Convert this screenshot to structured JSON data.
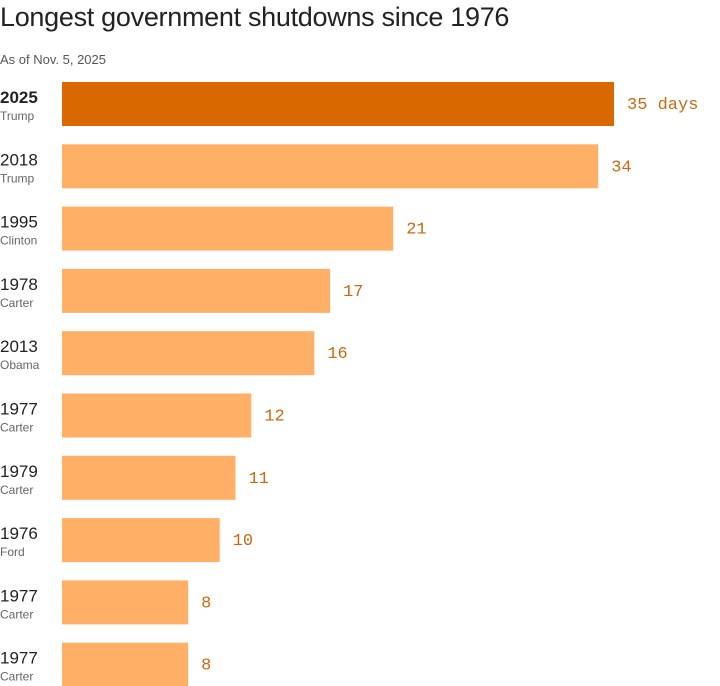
{
  "chart_data": {
    "type": "bar",
    "orientation": "horizontal",
    "title": "Longest government shutdowns since 1976",
    "subtitle": "As of Nov. 5, 2025",
    "unit_label": "days",
    "categories": [
      {
        "year": "2025",
        "president": "Trump"
      },
      {
        "year": "2018",
        "president": "Trump"
      },
      {
        "year": "1995",
        "president": "Clinton"
      },
      {
        "year": "1978",
        "president": "Carter"
      },
      {
        "year": "2013",
        "president": "Obama"
      },
      {
        "year": "1977",
        "president": "Carter"
      },
      {
        "year": "1979",
        "president": "Carter"
      },
      {
        "year": "1976",
        "president": "Ford"
      },
      {
        "year": "1977",
        "president": "Carter"
      },
      {
        "year": "1977",
        "president": "Carter"
      }
    ],
    "values": [
      35,
      34,
      21,
      17,
      16,
      12,
      11,
      10,
      8,
      8
    ],
    "highlight_index": 0,
    "colors": {
      "highlight": "#d96800",
      "bar": "#ffb066",
      "label": "#c96a10"
    },
    "xlim": [
      0,
      35
    ],
    "grid": false
  }
}
